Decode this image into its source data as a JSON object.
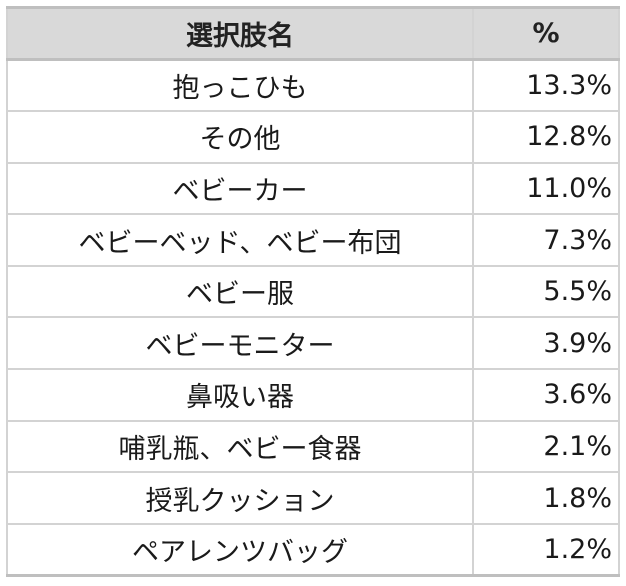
{
  "table": {
    "headers": {
      "option": "選択肢名",
      "percent": "%"
    },
    "rows": [
      {
        "name": "抱っこひも",
        "percent": "13.3%"
      },
      {
        "name": "その他",
        "percent": "12.8%"
      },
      {
        "name": "ベビーカー",
        "percent": "11.0%"
      },
      {
        "name": "ベビーベッド、ベビー布団",
        "percent": "7.3%"
      },
      {
        "name": "ベビー服",
        "percent": "5.5%"
      },
      {
        "name": "ベビーモニター",
        "percent": "3.9%"
      },
      {
        "name": "鼻吸い器",
        "percent": "3.6%"
      },
      {
        "name": "哺乳瓶、ベビー食器",
        "percent": "2.1%"
      },
      {
        "name": "授乳クッション",
        "percent": "1.8%"
      },
      {
        "name": "ペアレンツバッグ",
        "percent": "1.2%"
      }
    ]
  }
}
